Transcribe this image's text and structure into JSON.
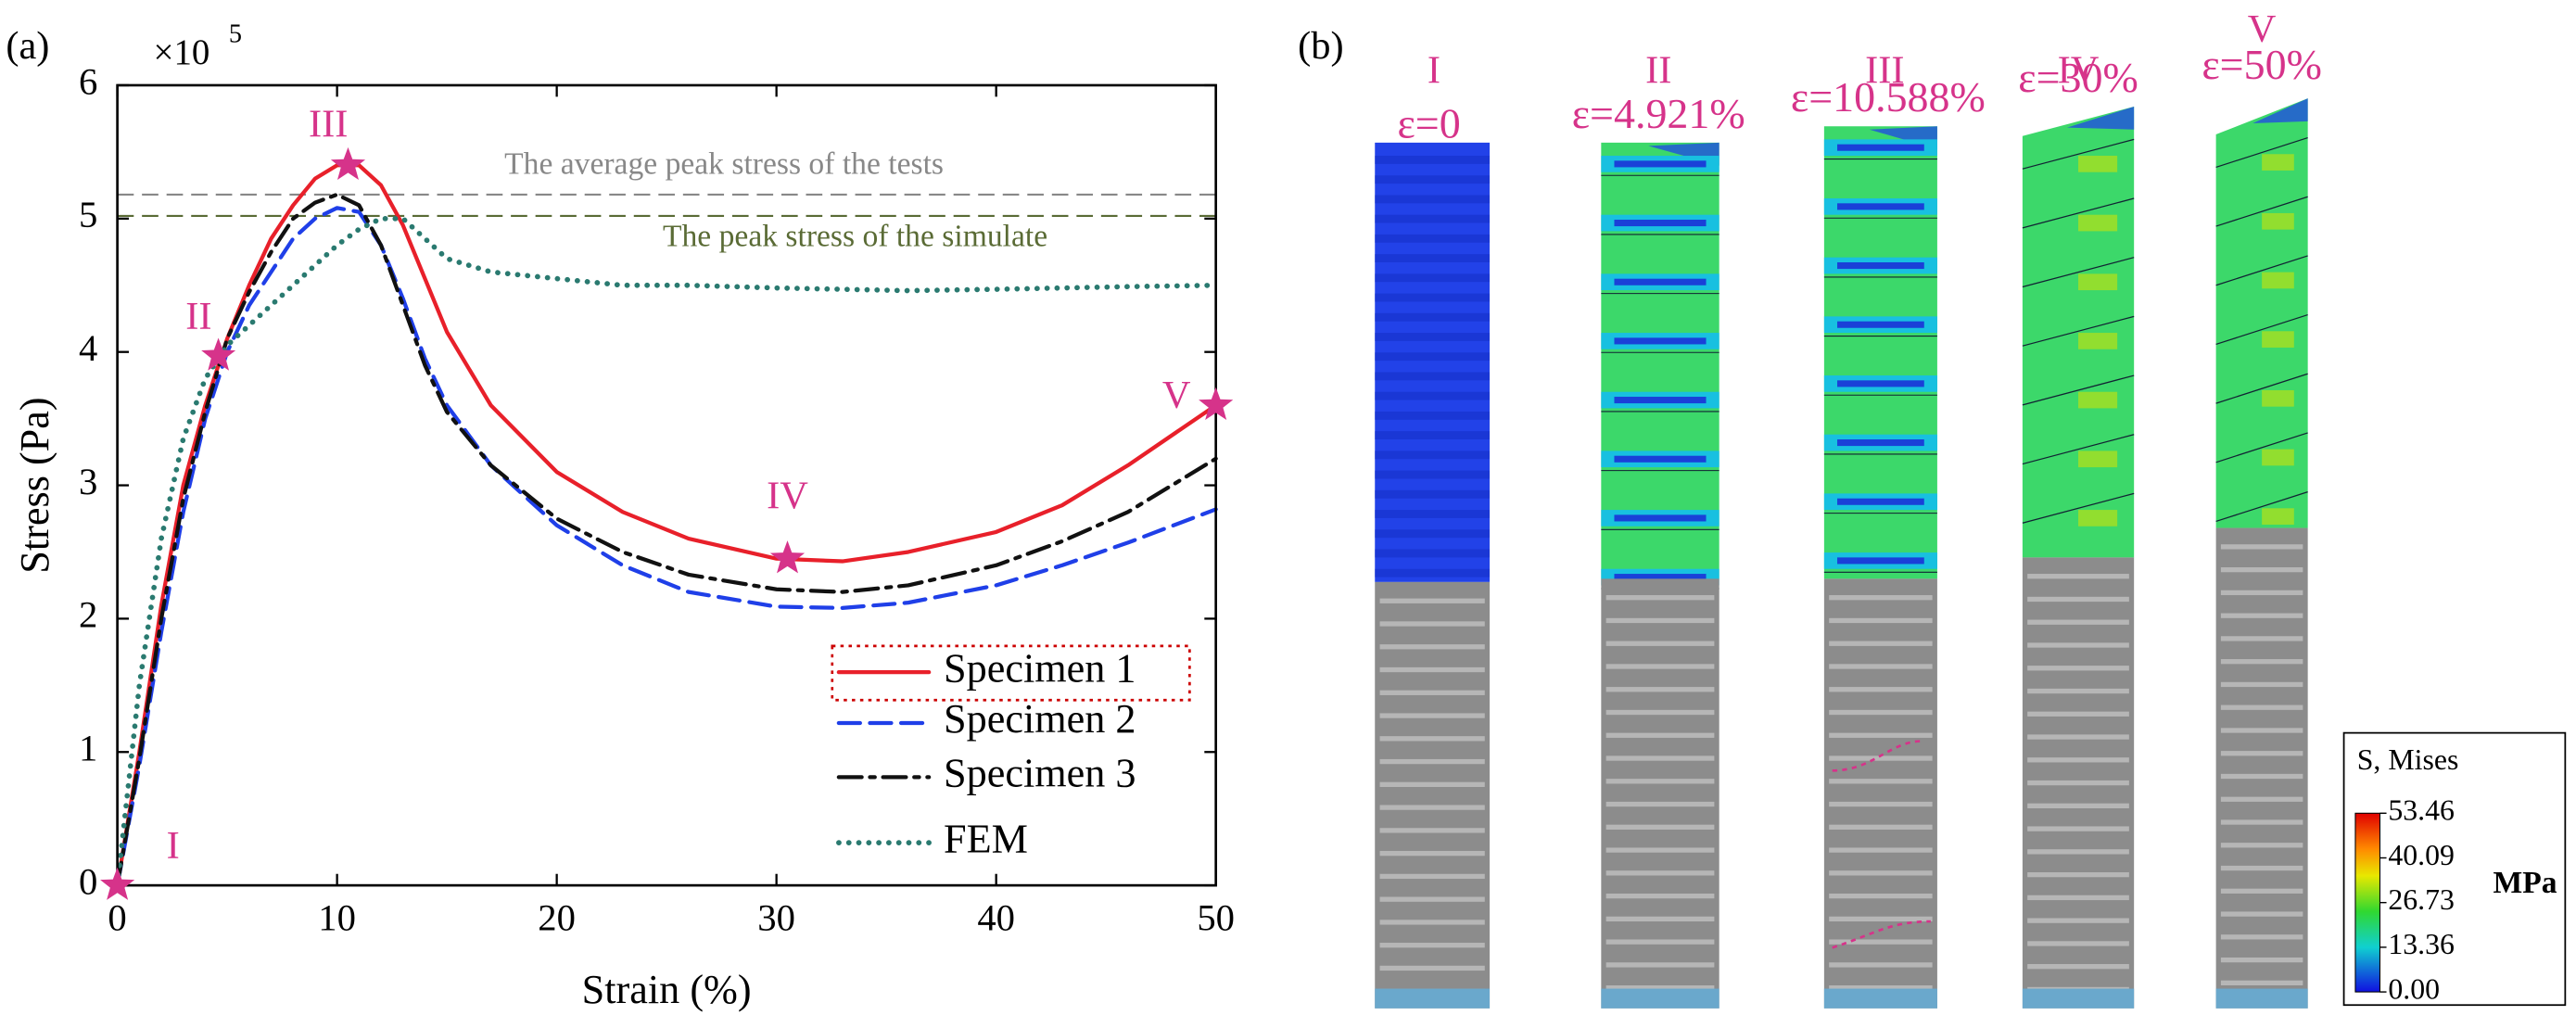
{
  "chart_data": {
    "type": "line",
    "panel_label": "(a)",
    "x_label": "Strain (%)",
    "y_label": "Stress (Pa)",
    "y_scale_base": "×10",
    "y_scale_exponent": "5",
    "xlim": [
      0,
      50
    ],
    "xticks": [
      0,
      10,
      20,
      30,
      40,
      50
    ],
    "ylim": [
      0,
      6
    ],
    "yticks": [
      0,
      1,
      2,
      3,
      4,
      5,
      6
    ],
    "x": [
      0,
      1,
      2,
      3,
      4,
      5,
      6,
      7,
      8,
      9,
      10,
      11,
      12,
      13,
      14,
      15,
      17,
      20,
      23,
      26,
      30,
      33,
      36,
      40,
      43,
      46,
      50
    ],
    "series": [
      {
        "name": "Specimen 1",
        "color": "#e8202a",
        "style": "solid",
        "values": [
          0,
          1.0,
          2.1,
          3.0,
          3.6,
          4.1,
          4.5,
          4.85,
          5.1,
          5.3,
          5.4,
          5.4,
          5.25,
          4.95,
          4.55,
          4.15,
          3.6,
          3.1,
          2.8,
          2.6,
          2.45,
          2.43,
          2.5,
          2.65,
          2.85,
          3.15,
          3.6
        ]
      },
      {
        "name": "Specimen 2",
        "color": "#1f3fe8",
        "style": "dashed",
        "values": [
          0,
          0.9,
          1.9,
          2.8,
          3.5,
          4.0,
          4.35,
          4.6,
          4.85,
          5.0,
          5.08,
          5.05,
          4.8,
          4.4,
          3.95,
          3.6,
          3.15,
          2.7,
          2.4,
          2.2,
          2.09,
          2.08,
          2.12,
          2.25,
          2.4,
          2.57,
          2.82
        ]
      },
      {
        "name": "Specimen 3",
        "color": "#111111",
        "style": "dashdot",
        "values": [
          0,
          0.95,
          2.0,
          2.9,
          3.55,
          4.1,
          4.45,
          4.75,
          5.0,
          5.12,
          5.18,
          5.1,
          4.8,
          4.35,
          3.9,
          3.55,
          3.15,
          2.75,
          2.5,
          2.33,
          2.22,
          2.2,
          2.25,
          2.4,
          2.58,
          2.8,
          3.2
        ]
      },
      {
        "name": "FEM",
        "color": "#2a7a70",
        "style": "dotted",
        "values": [
          0,
          1.5,
          2.6,
          3.35,
          3.8,
          4.05,
          4.2,
          4.35,
          4.5,
          4.65,
          4.8,
          4.92,
          5.0,
          5.0,
          4.85,
          4.7,
          4.6,
          4.55,
          4.5,
          4.5,
          4.48,
          4.47,
          4.46,
          4.47,
          4.48,
          4.49,
          4.5
        ]
      }
    ],
    "markers": {
      "color": "#d6338a",
      "labels": [
        "I",
        "II",
        "III",
        "IV",
        "V"
      ],
      "x": [
        0,
        4.6,
        10.5,
        30.5,
        50
      ],
      "y": [
        0,
        3.97,
        5.4,
        2.45,
        3.6
      ]
    },
    "reference_lines": [
      {
        "value": 5.18,
        "color": "#888888",
        "label": "The average peak stress of the tests"
      },
      {
        "value": 5.02,
        "color": "#5a6b35",
        "label": "The peak stress of the simulate"
      }
    ],
    "legend": "lower right"
  },
  "panel_b": {
    "label": "(b)",
    "stages": [
      {
        "numeral": "I",
        "strain": "ε=0"
      },
      {
        "numeral": "II",
        "strain": "ε=4.921%"
      },
      {
        "numeral": "III",
        "strain": "ε=10.588%"
      },
      {
        "numeral": "IV",
        "strain": "ε=30%"
      },
      {
        "numeral": "V",
        "strain": "ε=50%"
      }
    ],
    "colorbar": {
      "title": "S, Mises",
      "labels": [
        "53.46",
        "40.09",
        "26.73",
        "13.36",
        "0.00"
      ],
      "unit": "MPa"
    }
  }
}
